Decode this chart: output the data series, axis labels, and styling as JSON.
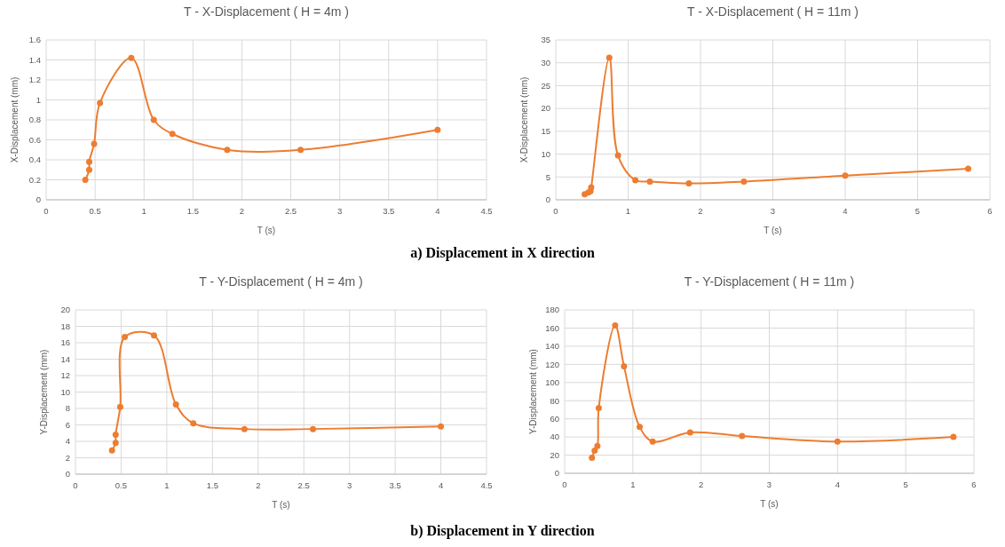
{
  "chart_data": [
    {
      "type": "line",
      "title": "T - X-Displacement ( H = 4m )",
      "xlabel": "T (s)",
      "ylabel": "X-Displacement (mm)",
      "xlim": [
        0,
        4.5
      ],
      "xticks": [
        0,
        0.5,
        1,
        1.5,
        2,
        2.5,
        3,
        3.5,
        4,
        4.5
      ],
      "ylim": [
        0,
        1.6
      ],
      "yticks": [
        0,
        0.2,
        0.4,
        0.6,
        0.8,
        1,
        1.2,
        1.4,
        1.6
      ],
      "grid": true,
      "marker": "circle",
      "line_style": "solid",
      "annotations": [
        "a) Displacement in X direction"
      ],
      "series": [
        {
          "color": "#ed7d31",
          "x": [
            0.4,
            0.44,
            0.44,
            0.49,
            0.55,
            0.87,
            1.1,
            1.29,
            1.85,
            2.6,
            4
          ],
          "values": [
            0.2,
            0.3,
            0.38,
            0.56,
            0.97,
            1.42,
            0.8,
            0.66,
            0.5,
            0.5,
            0.7
          ]
        }
      ]
    },
    {
      "type": "line",
      "title": "T - X-Displacement ( H = 11m )",
      "xlabel": "T (s)",
      "ylabel": "X-Displacement (mm)",
      "xlim": [
        0,
        6
      ],
      "xticks": [
        0,
        1,
        2,
        3,
        4,
        5,
        6
      ],
      "ylim": [
        0,
        35
      ],
      "yticks": [
        0,
        5,
        10,
        15,
        20,
        25,
        30,
        35
      ],
      "grid": true,
      "marker": "circle",
      "line_style": "solid",
      "series": [
        {
          "color": "#ed7d31",
          "x": [
            0.4,
            0.45,
            0.48,
            0.49,
            0.74,
            0.86,
            1.1,
            1.3,
            1.84,
            2.6,
            4,
            5.7
          ],
          "values": [
            1.2,
            1.6,
            1.9,
            2.7,
            31.1,
            9.7,
            4.3,
            4.0,
            3.6,
            4.0,
            5.3,
            6.8
          ]
        }
      ]
    },
    {
      "type": "line",
      "title": "T - Y-Displacement ( H = 4m )",
      "xlabel": "T (s)",
      "ylabel": "Y-Displacement (mm)",
      "xlim": [
        0,
        4.5
      ],
      "xticks": [
        0,
        0.5,
        1,
        1.5,
        2,
        2.5,
        3,
        3.5,
        4,
        4.5
      ],
      "ylim": [
        0,
        20
      ],
      "yticks": [
        0,
        2,
        4,
        6,
        8,
        10,
        12,
        14,
        16,
        18,
        20
      ],
      "grid": true,
      "marker": "circle",
      "line_style": "solid",
      "annotations": [
        "b) Displacement in Y direction"
      ],
      "series": [
        {
          "color": "#ed7d31",
          "x": [
            0.4,
            0.44,
            0.44,
            0.49,
            0.54,
            0.86,
            1.1,
            1.29,
            1.85,
            2.6,
            4
          ],
          "values": [
            2.9,
            3.8,
            4.8,
            8.2,
            16.7,
            16.9,
            8.5,
            6.2,
            5.5,
            5.5,
            5.8
          ]
        }
      ]
    },
    {
      "type": "line",
      "title": "T - Y-Displacement ( H = 11m )",
      "xlabel": "T (s)",
      "ylabel": "Y-Displacement (mm)",
      "xlim": [
        0,
        6
      ],
      "xticks": [
        0,
        1,
        2,
        3,
        4,
        5,
        6
      ],
      "ylim": [
        0,
        180
      ],
      "yticks": [
        0,
        20,
        40,
        60,
        80,
        100,
        120,
        140,
        160,
        180
      ],
      "grid": true,
      "marker": "circle",
      "line_style": "solid",
      "series": [
        {
          "color": "#ed7d31",
          "x": [
            0.4,
            0.44,
            0.47,
            0.48,
            0.5,
            0.74,
            0.87,
            1.1,
            1.29,
            1.84,
            2.6,
            4,
            5.7
          ],
          "values": [
            17,
            25,
            null,
            30,
            72,
            163,
            118,
            51,
            35,
            45,
            41,
            35,
            40
          ]
        }
      ]
    }
  ]
}
